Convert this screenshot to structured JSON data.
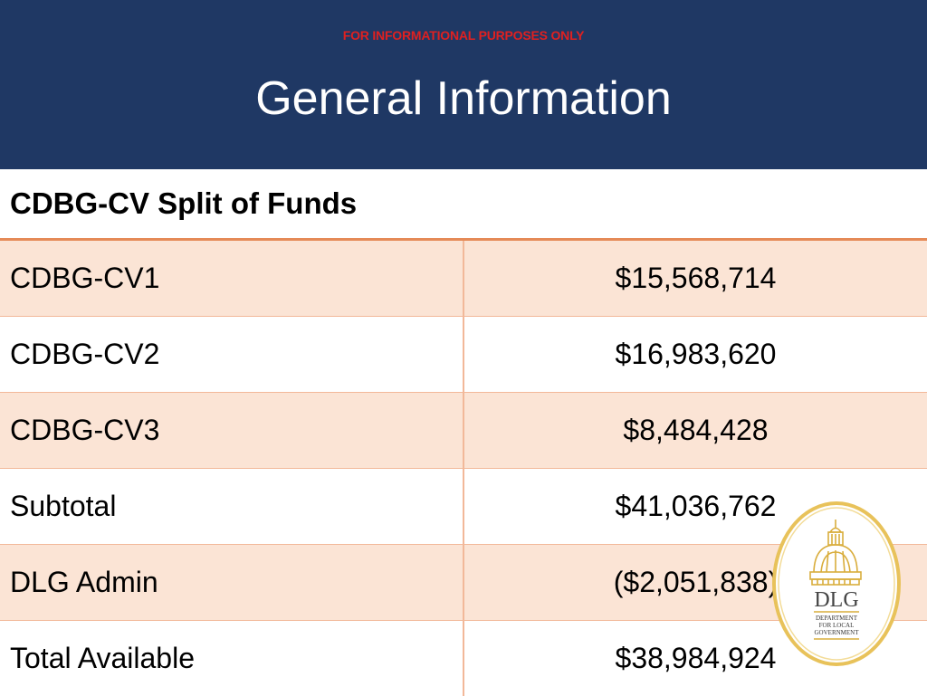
{
  "header": {
    "disclaimer": "FOR INFORMATIONAL PURPOSES ONLY",
    "title": "General Information"
  },
  "table": {
    "heading": "CDBG-CV Split of Funds",
    "rows": [
      {
        "label": "CDBG-CV1",
        "amount": "$15,568,714"
      },
      {
        "label": "CDBG-CV2",
        "amount": "$16,983,620"
      },
      {
        "label": "CDBG-CV3",
        "amount": "$8,484,428"
      },
      {
        "label": "Subtotal",
        "amount": "$41,036,762"
      },
      {
        "label": "DLG Admin",
        "amount": "($2,051,838)"
      },
      {
        "label": "Total Available",
        "amount": "$38,984,924"
      }
    ]
  },
  "logo": {
    "abbr": "DLG",
    "line1": "DEPARTMENT",
    "line2": "FOR LOCAL",
    "line3": "GOVERNMENT"
  },
  "colors": {
    "header_bg": "#1f3864",
    "disclaimer": "#e02020",
    "row_shade": "#fbe4d5",
    "row_border": "#f2b899",
    "logo_gold": "#e8c25a"
  }
}
